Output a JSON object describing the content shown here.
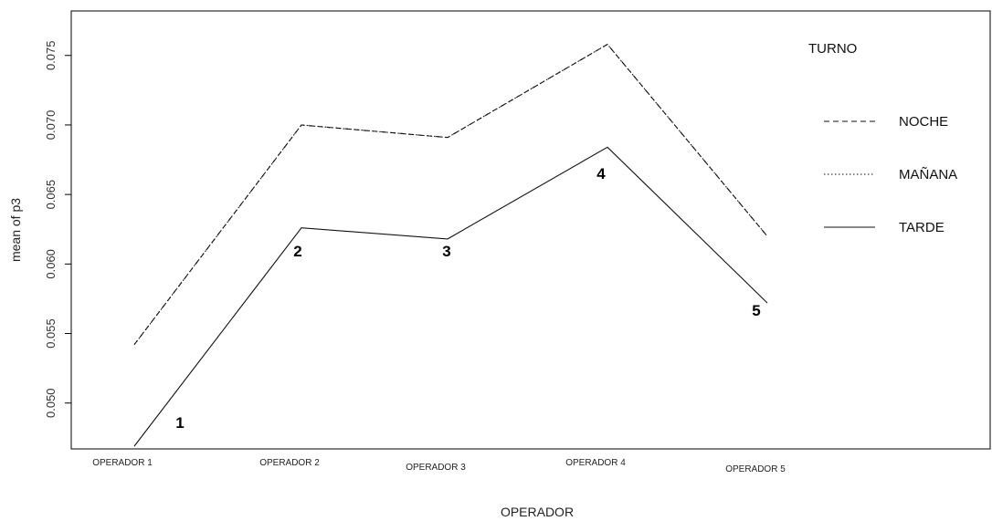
{
  "chart_data": {
    "type": "line",
    "xlabel": "OPERADOR",
    "ylabel": "mean of  p3",
    "categories": [
      "OPERADOR 1",
      "OPERADOR 2",
      "OPERADOR 3",
      "OPERADOR 4",
      "OPERADOR 5"
    ],
    "y_ticks": [
      "0.050",
      "0.055",
      "0.060",
      "0.065",
      "0.070",
      "0.075"
    ],
    "ylim": [
      0.0467,
      0.0782
    ],
    "legend_title": "TURNO",
    "legend_position": "right",
    "series": [
      {
        "name": "NOCHE",
        "line_style": "dashed",
        "values": [
          0.0542,
          0.07,
          0.0691,
          0.0758,
          0.062
        ]
      },
      {
        "name": "MAÑANA",
        "line_style": "dotted",
        "values": [
          0.0542,
          0.07,
          0.0691,
          0.0758,
          0.062
        ]
      },
      {
        "name": "TARDE",
        "line_style": "solid",
        "values": [
          0.0469,
          0.0626,
          0.0618,
          0.0684,
          0.0572
        ]
      }
    ],
    "annotations": [
      "1",
      "2",
      "3",
      "4",
      "5"
    ],
    "grid": false
  }
}
